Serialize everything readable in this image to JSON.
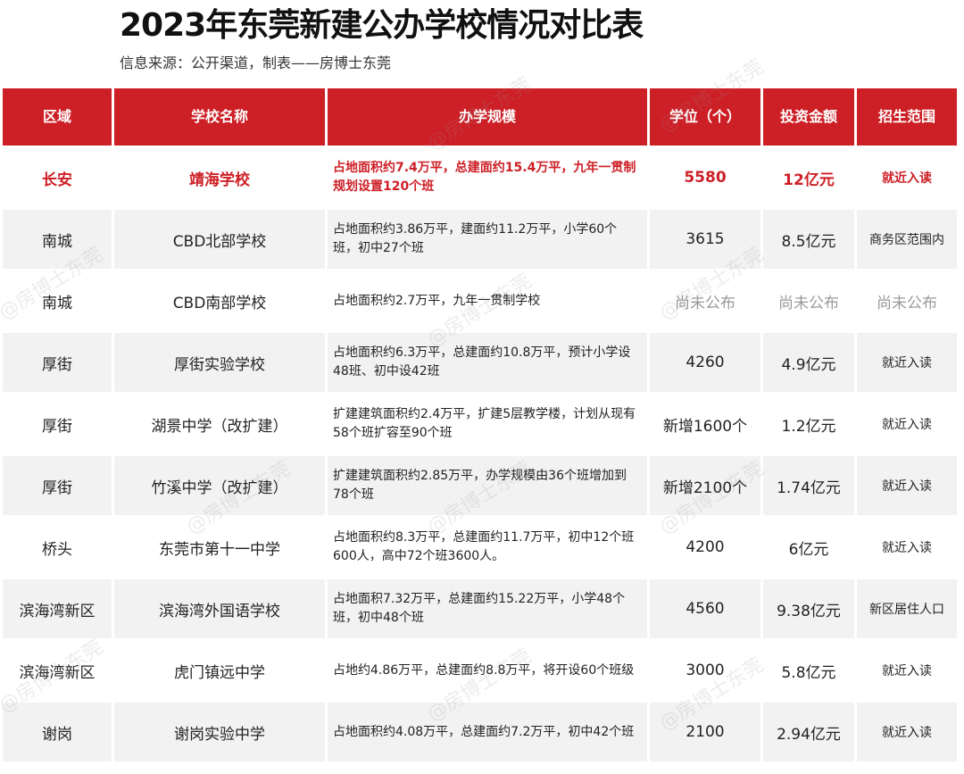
{
  "title": "2023年东莞新建公办学校情况对比表",
  "subtitle": "信息来源：公开渠道，制表——房博士东莞",
  "watermark_text": "@房博士东莞",
  "colors": {
    "header_bg": "#cd1f26",
    "highlight_text": "#cd1f26",
    "pending_text": "#9a9a9a"
  },
  "table": {
    "headers": [
      "区域",
      "学校名称",
      "办学规模",
      "学位（个）",
      "投资金额",
      "招生范围"
    ],
    "rows": [
      [
        "长安",
        "靖海学校",
        "占地面积约7.4万平，总建面约15.4万平，九年一贯制规划设置120个班",
        "5580",
        "12亿元",
        "就近入读"
      ],
      [
        "南城",
        "CBD北部学校",
        "占地面积约3.86万平，建面约11.2万平，小学60个班，初中27个班",
        "3615",
        "8.5亿元",
        "商务区范围内"
      ],
      [
        "南城",
        "CBD南部学校",
        "占地面积约2.7万平，九年一贯制学校",
        "尚未公布",
        "尚未公布",
        "尚未公布"
      ],
      [
        "厚街",
        "厚街实验学校",
        "占地面积约6.3万平，总建面约10.8万平，预计小学设48班、初中设42班",
        "4260",
        "4.9亿元",
        "就近入读"
      ],
      [
        "厚街",
        "湖景中学（改扩建）",
        "扩建建筑面积约2.4万平，扩建5层教学楼，计划从现有58个班扩容至90个班",
        "新增1600个",
        "1.2亿元",
        "就近入读"
      ],
      [
        "厚街",
        "竹溪中学（改扩建）",
        "扩建建筑面积约2.85万平，办学规模由36个班增加到78个班",
        "新增2100个",
        "1.74亿元",
        "就近入读"
      ],
      [
        "桥头",
        "东莞市第十一中学",
        "占地面积约8.3万平，总建面约11.7万平，初中12个班600人，高中72个班3600人。",
        "4200",
        "6亿元",
        "就近入读"
      ],
      [
        "滨海湾新区",
        "滨海湾外国语学校",
        "占地面积7.32万平，总建面约15.22万平，小学48个班，初中48个班",
        "4560",
        "9.38亿元",
        "新区居住人口"
      ],
      [
        "滨海湾新区",
        "虎门镇远中学",
        "占地约4.86万平，总建面约8.8万平，将开设60个班级",
        "3000",
        "5.8亿元",
        "就近入读"
      ],
      [
        "谢岗",
        "谢岗实验中学",
        "占地面积约4.08万平，总建面约7.2万平，初中42个班",
        "2100",
        "2.94亿元",
        "就近入读"
      ]
    ]
  }
}
